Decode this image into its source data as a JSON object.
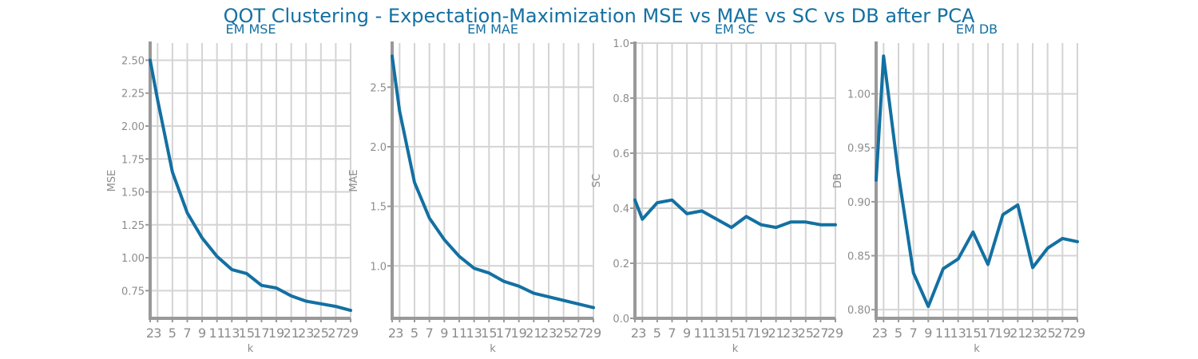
{
  "figure": {
    "title": "QOT Clustering - Expectation-Maximization MSE vs MAE vs SC vs DB after PCA"
  },
  "chart_data": [
    {
      "type": "line",
      "title": "EM MSE",
      "xlabel": "k",
      "ylabel": "MSE",
      "x": [
        2,
        3,
        5,
        7,
        9,
        11,
        13,
        15,
        17,
        19,
        21,
        23,
        25,
        27,
        29
      ],
      "xticks": [
        "2",
        "3",
        "5",
        "7",
        "9",
        "11",
        "13",
        "15",
        "17",
        "19",
        "21",
        "23",
        "25",
        "27",
        "29"
      ],
      "yticks": [
        0.75,
        1.0,
        1.25,
        1.5,
        1.75,
        2.0,
        2.25,
        2.5
      ],
      "ytick_labels": [
        "0.75",
        "1.00",
        "1.25",
        "1.50",
        "1.75",
        "2.00",
        "2.25",
        "2.50"
      ],
      "ylim": [
        0.54,
        2.63
      ],
      "xlim": [
        2,
        29
      ],
      "grid": true,
      "series": [
        {
          "values": [
            2.5,
            2.2,
            1.65,
            1.34,
            1.15,
            1.01,
            0.91,
            0.88,
            0.79,
            0.77,
            0.71,
            0.67,
            0.65,
            0.63,
            0.6
          ]
        }
      ]
    },
    {
      "type": "line",
      "title": "EM MAE",
      "xlabel": "k",
      "ylabel": "MAE",
      "x": [
        2,
        3,
        5,
        7,
        9,
        11,
        13,
        15,
        17,
        19,
        21,
        23,
        25,
        27,
        29
      ],
      "xticks": [
        "2",
        "3",
        "5",
        "7",
        "9",
        "11",
        "13",
        "15",
        "17",
        "19",
        "21",
        "23",
        "25",
        "27",
        "29"
      ],
      "yticks": [
        1.0,
        1.5,
        2.0,
        2.5
      ],
      "ytick_labels": [
        "1.0",
        "1.5",
        "2.0",
        "2.5"
      ],
      "ylim": [
        0.56,
        2.87
      ],
      "xlim": [
        2,
        29
      ],
      "grid": true,
      "series": [
        {
          "values": [
            2.76,
            2.3,
            1.7,
            1.4,
            1.22,
            1.08,
            0.98,
            0.94,
            0.87,
            0.83,
            0.77,
            0.74,
            0.71,
            0.68,
            0.65
          ]
        }
      ]
    },
    {
      "type": "line",
      "title": "EM SC",
      "xlabel": "k",
      "ylabel": "SC",
      "x": [
        2,
        3,
        5,
        7,
        9,
        11,
        13,
        15,
        17,
        19,
        21,
        23,
        25,
        27,
        29
      ],
      "xticks": [
        "2",
        "3",
        "5",
        "7",
        "9",
        "11",
        "13",
        "15",
        "17",
        "19",
        "21",
        "23",
        "25",
        "27",
        "29"
      ],
      "yticks": [
        0.0,
        0.2,
        0.4,
        0.6,
        0.8,
        1.0
      ],
      "ytick_labels": [
        "0.0",
        "0.2",
        "0.4",
        "0.6",
        "0.8",
        "1.0"
      ],
      "ylim": [
        0.0,
        1.0
      ],
      "xlim": [
        2,
        29
      ],
      "grid": true,
      "series": [
        {
          "values": [
            0.43,
            0.36,
            0.42,
            0.43,
            0.38,
            0.39,
            0.36,
            0.33,
            0.37,
            0.34,
            0.33,
            0.35,
            0.35,
            0.34,
            0.34
          ]
        }
      ]
    },
    {
      "type": "line",
      "title": "EM DB",
      "xlabel": "k",
      "ylabel": "DB",
      "x": [
        2,
        3,
        5,
        7,
        9,
        11,
        13,
        15,
        17,
        19,
        21,
        23,
        25,
        27,
        29
      ],
      "xticks": [
        "2",
        "3",
        "5",
        "7",
        "9",
        "11",
        "13",
        "15",
        "17",
        "19",
        "21",
        "23",
        "25",
        "27",
        "29"
      ],
      "yticks": [
        0.8,
        0.85,
        0.9,
        0.95,
        1.0
      ],
      "ytick_labels": [
        "0.80",
        "0.85",
        "0.90",
        "0.95",
        "1.00"
      ],
      "ylim": [
        0.792,
        1.047
      ],
      "xlim": [
        2,
        29
      ],
      "grid": true,
      "series": [
        {
          "values": [
            0.92,
            1.035,
            0.925,
            0.834,
            0.803,
            0.838,
            0.847,
            0.872,
            0.842,
            0.888,
            0.897,
            0.839,
            0.857,
            0.866,
            0.863
          ]
        }
      ]
    }
  ],
  "colors": {
    "line": "#1370a2",
    "title": "#1370a2",
    "tick_text": "#8c8c8c",
    "grid": "#d4d4d4",
    "spine": "#999999"
  }
}
